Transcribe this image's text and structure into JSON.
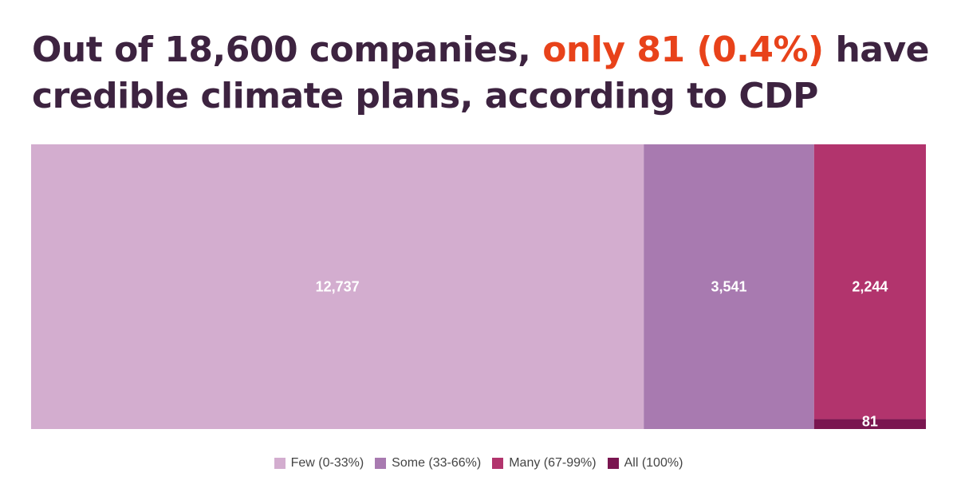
{
  "chart_data": {
    "type": "bar",
    "subtype": "stacked-treemap",
    "title_parts": [
      {
        "text": "Out of 18,600 companies, ",
        "accent": false
      },
      {
        "text": "only 81 (0.4%)",
        "accent": true
      },
      {
        "text": " have credible climate plans, according to CDP",
        "accent": false
      }
    ],
    "categories": [
      "Few (0-33%)",
      "Some (33-66%)",
      "Many (67-99%)",
      "All (100%)"
    ],
    "values": [
      12737,
      3541,
      2244,
      81
    ],
    "labels": [
      "12,737",
      "3,541",
      "2,244",
      "81"
    ],
    "colors": [
      "#d3adcf",
      "#a87ab0",
      "#b2346d",
      "#7a1650"
    ],
    "legend": "bottom"
  },
  "colors": {
    "title": "#3d2340",
    "accent": "#e8421a"
  }
}
